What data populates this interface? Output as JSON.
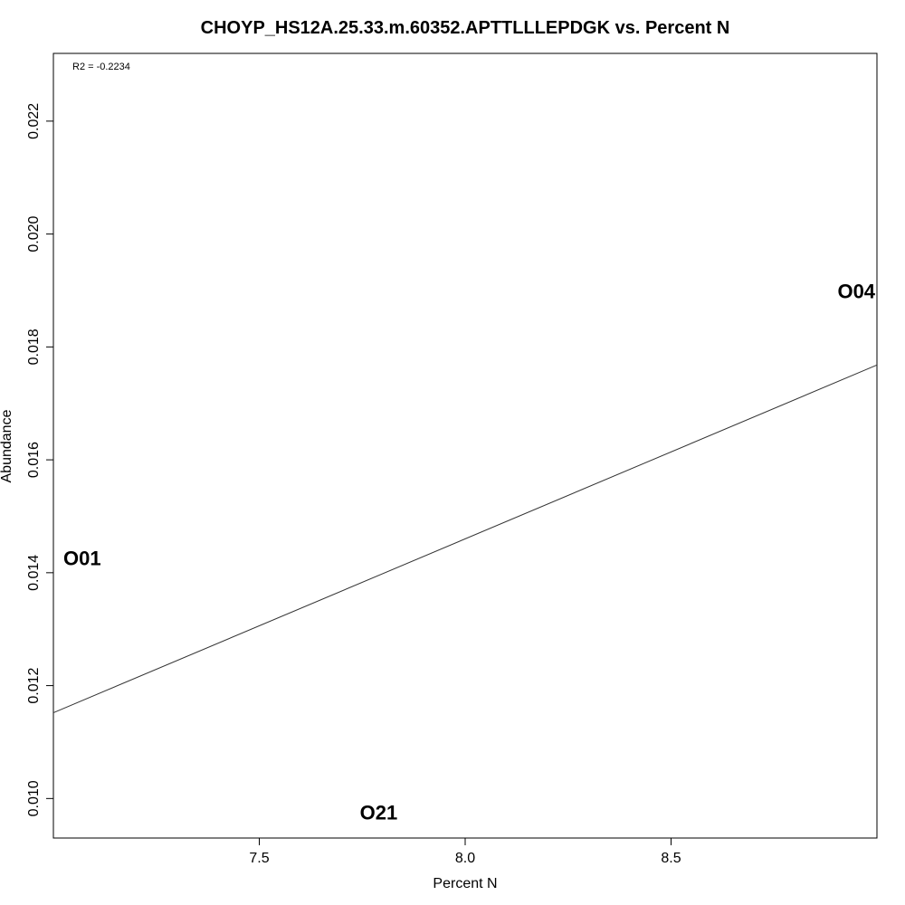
{
  "chart_data": {
    "type": "scatter",
    "title": "CHOYP_HS12A.25.33.m.60352.APTTLLLEPDGK vs. Percent N",
    "xlabel": "Percent N",
    "ylabel": "Abundance",
    "xlim": [
      7.0,
      9.0
    ],
    "ylim": [
      0.0093,
      0.0232
    ],
    "x_ticks": [
      {
        "value": 7.5,
        "label": "7.5"
      },
      {
        "value": 8.0,
        "label": "8.0"
      },
      {
        "value": 8.5,
        "label": "8.5"
      }
    ],
    "y_ticks": [
      {
        "value": 0.01,
        "label": "0.010"
      },
      {
        "value": 0.012,
        "label": "0.012"
      },
      {
        "value": 0.014,
        "label": "0.014"
      },
      {
        "value": 0.016,
        "label": "0.016"
      },
      {
        "value": 0.018,
        "label": "0.018"
      },
      {
        "value": 0.02,
        "label": "0.020"
      },
      {
        "value": 0.022,
        "label": "0.022"
      }
    ],
    "points": [
      {
        "label": "O01",
        "x": 7.07,
        "y": 0.01425
      },
      {
        "label": "O21",
        "x": 7.79,
        "y": 0.00975
      },
      {
        "label": "O04",
        "x": 8.95,
        "y": 0.01898
      }
    ],
    "regression_line": {
      "x": [
        7.0,
        9.0
      ],
      "y": [
        0.01152,
        0.01768
      ]
    },
    "annotation": "R2 = -0.2234",
    "grid": false,
    "legend": "none"
  }
}
